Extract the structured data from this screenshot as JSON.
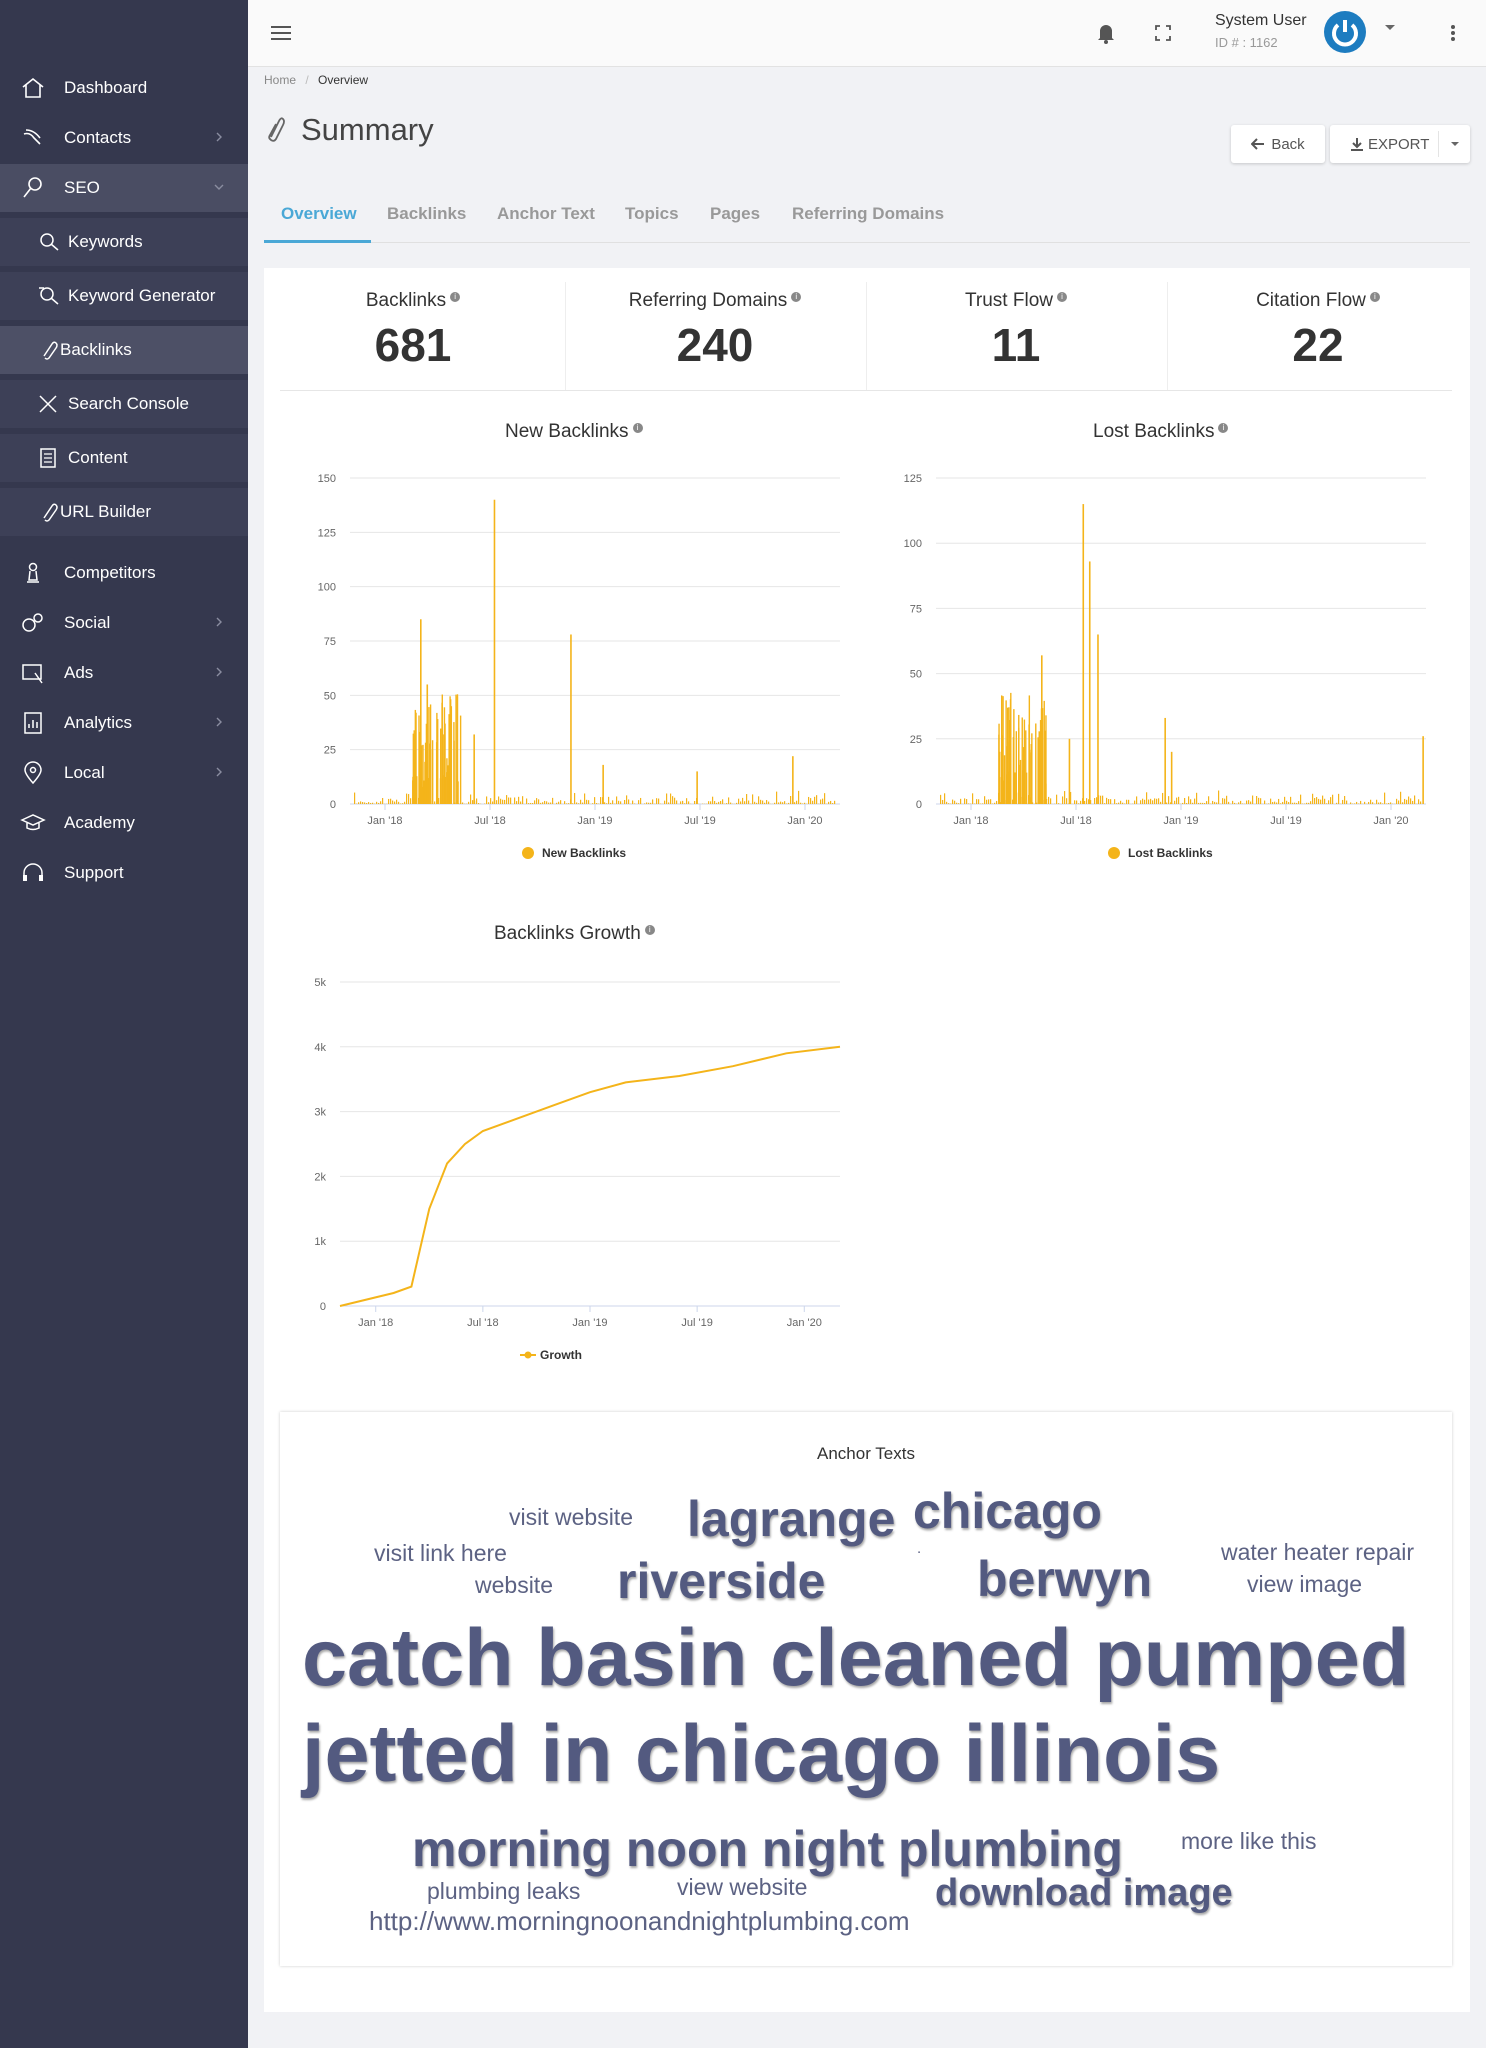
{
  "sidebar": {
    "items": [
      {
        "label": "Dashboard",
        "icon": "home-icon"
      },
      {
        "label": "Contacts",
        "icon": "hand-icon"
      },
      {
        "label": "SEO",
        "icon": "key-icon"
      },
      {
        "label": "Keywords",
        "icon": "magnifier-icon"
      },
      {
        "label": "Keyword Generator",
        "icon": "magnifier-list-icon"
      },
      {
        "label": "Backlinks",
        "icon": "paperclip-icon"
      },
      {
        "label": "Search Console",
        "icon": "tools-icon"
      },
      {
        "label": "Content",
        "icon": "document-icon"
      },
      {
        "label": "URL Builder",
        "icon": "paperclip-icon"
      },
      {
        "label": "Competitors",
        "icon": "chess-pawn-icon"
      },
      {
        "label": "Social",
        "icon": "social-icon"
      },
      {
        "label": "Ads",
        "icon": "ads-icon"
      },
      {
        "label": "Analytics",
        "icon": "analytics-icon"
      },
      {
        "label": "Local",
        "icon": "map-pin-icon"
      },
      {
        "label": "Academy",
        "icon": "graduation-cap-icon"
      },
      {
        "label": "Support",
        "icon": "headset-icon"
      }
    ]
  },
  "header": {
    "user_name": "System User",
    "user_id": "ID # : 1162"
  },
  "breadcrumb": {
    "home": "Home",
    "current": "Overview"
  },
  "page": {
    "title": "Summary",
    "back_label": "Back",
    "export_label": "EXPORT"
  },
  "tabs": [
    "Overview",
    "Backlinks",
    "Anchor Text",
    "Topics",
    "Pages",
    "Referring Domains"
  ],
  "stats": [
    {
      "label": "Backlinks",
      "value": "681"
    },
    {
      "label": "Referring Domains",
      "value": "240"
    },
    {
      "label": "Trust Flow",
      "value": "11"
    },
    {
      "label": "Citation Flow",
      "value": "22"
    }
  ],
  "colors": {
    "sidebar": "#35384e",
    "accent": "#4aa8d6",
    "series": "#f4b41a",
    "cloud": "#5c6283"
  },
  "chart_data": [
    {
      "type": "bar",
      "title": "New Backlinks",
      "legend": "New Backlinks",
      "x_ticks": [
        "Jan '18",
        "Jul '18",
        "Jan '19",
        "Jul '19",
        "Jan '20"
      ],
      "y_ticks": [
        "0",
        "25",
        "50",
        "75",
        "100",
        "125",
        "150"
      ],
      "ylim": [
        0,
        150
      ],
      "grid": true,
      "legend_position": "bottom",
      "peaks": [
        {
          "x": "2018-03",
          "y": 85
        },
        {
          "x": "2018-03",
          "y": 55
        },
        {
          "x": "2018-04",
          "y": 45
        },
        {
          "x": "2018-07",
          "y": 140
        },
        {
          "x": "2018-11",
          "y": 78
        },
        {
          "x": "2018-06",
          "y": 32
        },
        {
          "x": "2019-01",
          "y": 18
        },
        {
          "x": "2019-06",
          "y": 15
        },
        {
          "x": "2019-12",
          "y": 22
        }
      ]
    },
    {
      "type": "bar",
      "title": "Lost Backlinks",
      "legend": "Lost Backlinks",
      "x_ticks": [
        "Jan '18",
        "Jul '18",
        "Jan '19",
        "Jul '19",
        "Jan '20"
      ],
      "y_ticks": [
        "0",
        "25",
        "50",
        "75",
        "100",
        "125"
      ],
      "ylim": [
        0,
        125
      ],
      "grid": true,
      "legend_position": "bottom",
      "peaks": [
        {
          "x": "2018-05",
          "y": 57
        },
        {
          "x": "2018-07",
          "y": 115
        },
        {
          "x": "2018-07",
          "y": 93
        },
        {
          "x": "2018-08",
          "y": 65
        },
        {
          "x": "2018-06",
          "y": 25
        },
        {
          "x": "2018-12",
          "y": 33
        },
        {
          "x": "2018-12",
          "y": 20
        },
        {
          "x": "2020-02",
          "y": 26
        }
      ]
    },
    {
      "type": "line",
      "title": "Backlinks Growth",
      "legend": "Growth",
      "x_ticks": [
        "Jan '18",
        "Jul '18",
        "Jan '19",
        "Jul '19",
        "Jan '20"
      ],
      "y_ticks": [
        "0",
        "1k",
        "2k",
        "3k",
        "4k",
        "5k"
      ],
      "ylim": [
        0,
        5000
      ],
      "grid": true,
      "legend_position": "bottom",
      "points": [
        {
          "x": "2017-11",
          "y": 0
        },
        {
          "x": "2018-02",
          "y": 200
        },
        {
          "x": "2018-03",
          "y": 300
        },
        {
          "x": "2018-04",
          "y": 1500
        },
        {
          "x": "2018-05",
          "y": 2200
        },
        {
          "x": "2018-06",
          "y": 2500
        },
        {
          "x": "2018-07",
          "y": 2700
        },
        {
          "x": "2018-09",
          "y": 2900
        },
        {
          "x": "2018-11",
          "y": 3100
        },
        {
          "x": "2019-01",
          "y": 3300
        },
        {
          "x": "2019-03",
          "y": 3450
        },
        {
          "x": "2019-06",
          "y": 3550
        },
        {
          "x": "2019-09",
          "y": 3700
        },
        {
          "x": "2019-12",
          "y": 3900
        },
        {
          "x": "2020-03",
          "y": 4000
        }
      ]
    }
  ],
  "anchor_texts": {
    "title": "Anchor Texts",
    "words": [
      "visit website",
      "lagrange",
      "chicago",
      "visit link here",
      "website",
      "riverside",
      "berwyn",
      "water heater repair",
      "view image",
      "catch basin cleaned pumped",
      "jetted in chicago illinois",
      "morning noon night plumbing",
      "more like this",
      "plumbing leaks",
      "view website",
      "download image",
      "http://www.morningnoonandnightplumbing.com"
    ]
  }
}
